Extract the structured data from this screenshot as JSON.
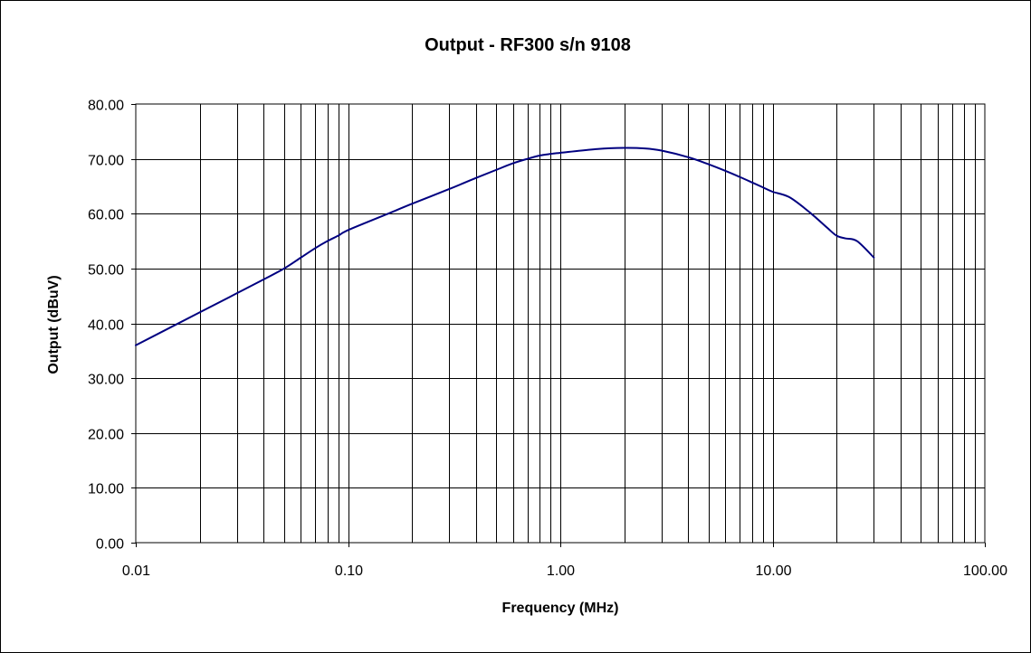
{
  "chart_data": {
    "type": "line",
    "title": "Output - RF300  s/n 9108",
    "xlabel": "Frequency (MHz)",
    "ylabel": "Output (dBuV)",
    "x_scale": "log",
    "xlim": [
      0.01,
      100
    ],
    "ylim": [
      0,
      80
    ],
    "x_tick_labels": [
      "0.01",
      "0.10",
      "1.00",
      "10.00",
      "100.00"
    ],
    "y_tick_labels": [
      "0.00",
      "10.00",
      "20.00",
      "30.00",
      "40.00",
      "50.00",
      "60.00",
      "70.00",
      "80.00"
    ],
    "grid": true,
    "legend": "none",
    "series": [
      {
        "color": "#000080",
        "x": [
          0.01,
          0.02,
          0.03,
          0.04,
          0.05,
          0.06,
          0.07,
          0.08,
          0.09,
          0.1,
          0.15,
          0.2,
          0.3,
          0.4,
          0.5,
          0.6,
          0.7,
          0.8,
          0.9,
          1.0,
          1.5,
          2.0,
          2.5,
          3.0,
          4.0,
          5.0,
          6.0,
          7.0,
          8.0,
          9.0,
          10.0,
          12.0,
          15.0,
          18.0,
          20.0,
          22.0,
          25.0,
          30.0
        ],
        "y": [
          36.0,
          42.0,
          45.5,
          48.0,
          50.0,
          52.0,
          53.7,
          55.0,
          56.0,
          57.0,
          59.8,
          61.8,
          64.5,
          66.5,
          68.0,
          69.2,
          70.0,
          70.6,
          70.9,
          71.1,
          71.8,
          72.0,
          71.9,
          71.5,
          70.3,
          69.0,
          67.8,
          66.7,
          65.7,
          64.8,
          64.0,
          63.0,
          60.2,
          57.5,
          56.0,
          55.5,
          55.0,
          52.0
        ]
      }
    ]
  }
}
